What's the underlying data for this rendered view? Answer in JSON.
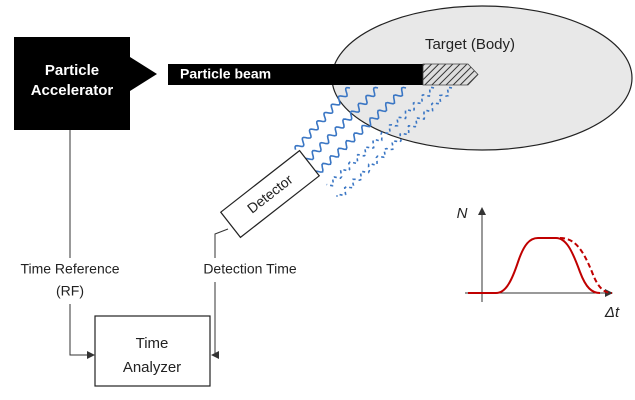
{
  "nodes": [
    {
      "label_lines": [
        "Particle",
        "Accelerator"
      ]
    },
    {
      "label": "Particle beam"
    },
    {
      "label": "Target (Body)"
    },
    {
      "label": "Detector"
    },
    {
      "label_lines": [
        "Time Reference",
        "(RF)"
      ]
    },
    {
      "label": "Detection Time"
    },
    {
      "label_lines": [
        "Time",
        "Analyzer"
      ]
    }
  ],
  "inset_graph": {
    "y_axis_label": "N",
    "x_axis_label": "Δt"
  }
}
